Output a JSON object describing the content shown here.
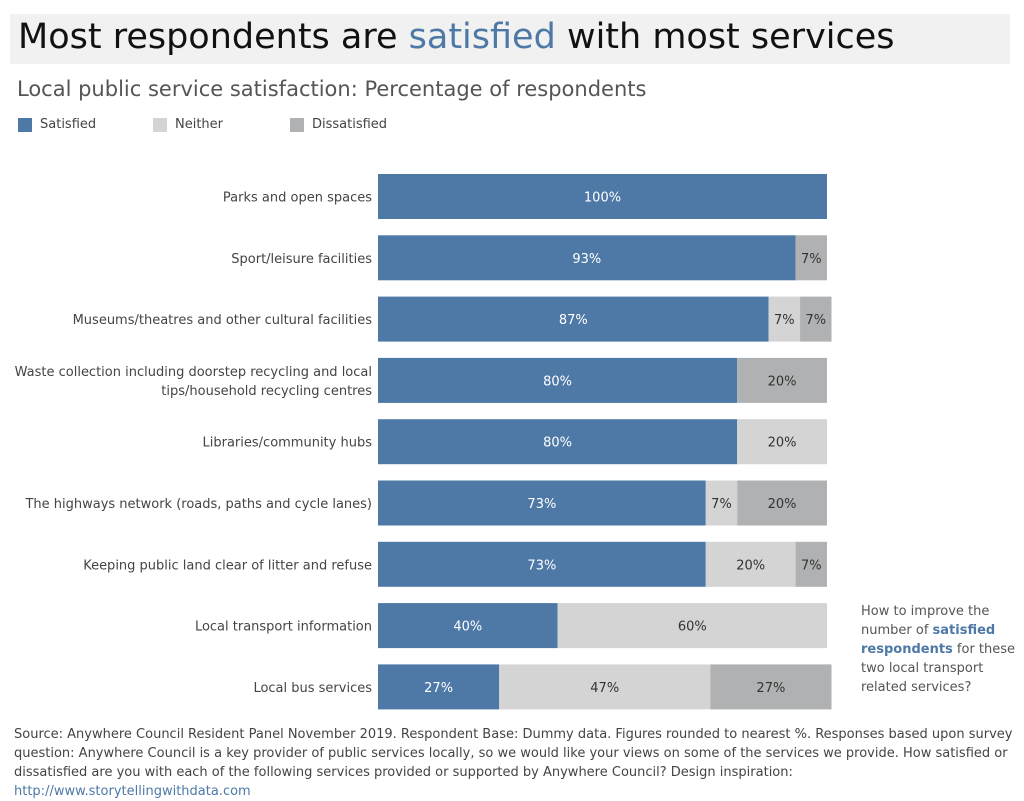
{
  "header": {
    "title_before": "Most respondents are ",
    "title_highlight": "satisfied",
    "title_after": " with most services",
    "subtitle": "Local public service satisfaction: Percentage of respondents"
  },
  "legend": [
    {
      "label": "Satisfied",
      "color": "#4e79a7"
    },
    {
      "label": "Neither",
      "color": "#d4d4d4"
    },
    {
      "label": "Dissatisfied",
      "color": "#b0b1b2"
    }
  ],
  "annotation": {
    "before": "How to improve the number of ",
    "highlight": "satisfied respondents",
    "after": " for these two local transport related services?"
  },
  "source": {
    "text": "Source: Anywhere Council Resident Panel November 2019.  Respondent Base: Dummy data. Figures rounded to nearest %. Responses based upon survey question:  Anywhere Council is a key provider of public services locally, so we would like your views on some of the services we provide. How satisfied or dissatisfied are you with each of the following services provided or supported by Anywhere Council?  Design inspiration: ",
    "link": "http://www.storytellingwithdata.com"
  },
  "chart_data": {
    "type": "bar",
    "orientation": "horizontal",
    "stacked": true,
    "categories": [
      "Parks and open spaces",
      "Sport/leisure facilities",
      "Museums/theatres and other cultural facilities",
      "Waste collection including doorstep recycling and local tips/household recycling centres",
      "Libraries/community hubs",
      "The highways network (roads, paths and cycle lanes)",
      "Keeping public land clear of litter and refuse",
      "Local transport information",
      "Local bus services"
    ],
    "category_lines": [
      [
        "Parks and open spaces"
      ],
      [
        "Sport/leisure facilities"
      ],
      [
        "Museums/theatres and other cultural facilities"
      ],
      [
        "Waste collection including doorstep recycling and local",
        "tips/household recycling centres"
      ],
      [
        "Libraries/community hubs"
      ],
      [
        "The highways network (roads, paths and cycle lanes)"
      ],
      [
        "Keeping public land clear of litter and refuse"
      ],
      [
        "Local transport information"
      ],
      [
        "Local bus services"
      ]
    ],
    "series": [
      {
        "name": "Satisfied",
        "color": "#4e79a7",
        "label_color": "#ffffff",
        "values": [
          100,
          93,
          87,
          80,
          80,
          73,
          73,
          40,
          27
        ]
      },
      {
        "name": "Neither",
        "color": "#d4d4d4",
        "label_color": "#333333",
        "values": [
          0,
          0,
          7,
          0,
          20,
          7,
          20,
          60,
          47
        ]
      },
      {
        "name": "Dissatisfied",
        "color": "#b0b1b2",
        "label_color": "#333333",
        "values": [
          0,
          7,
          7,
          20,
          0,
          20,
          7,
          0,
          27
        ]
      }
    ],
    "value_suffix": "%",
    "xlim": [
      0,
      100
    ],
    "grid": false,
    "legend_position": "top-left"
  }
}
